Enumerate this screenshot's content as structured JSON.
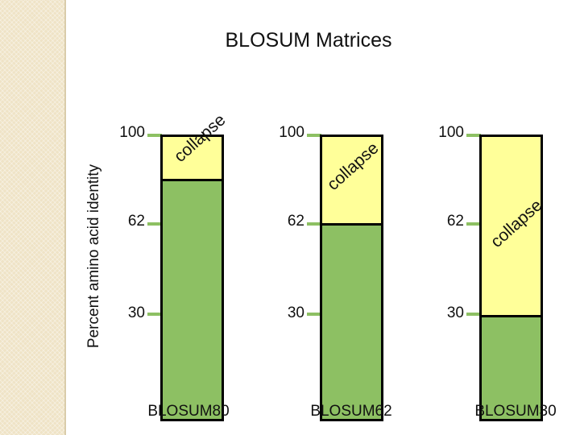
{
  "title": "BLOSUM Matrices",
  "y_axis_label": "Percent amino acid identity",
  "bars": [
    {
      "name": "BLOSUM80",
      "ticks": [
        "100",
        "62",
        "30"
      ],
      "threshold_percent": 80,
      "collapse_label": "collapse"
    },
    {
      "name": "BLOSUM62",
      "ticks": [
        "100",
        "62",
        "30"
      ],
      "threshold_percent": 62,
      "collapse_label": "collapse"
    },
    {
      "name": "BLOSUM30",
      "ticks": [
        "100",
        "62",
        "30"
      ],
      "threshold_percent": 30,
      "collapse_label": "collapse"
    }
  ],
  "colors": {
    "collapse_region": "#ffff99",
    "identity_region": "#8dc063",
    "outline": "#000000",
    "side_strip": "#efe3c6"
  }
}
